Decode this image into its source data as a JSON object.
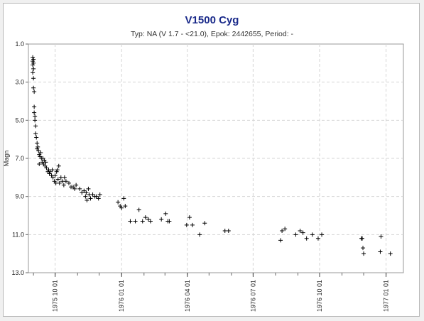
{
  "chart_data": {
    "type": "scatter",
    "title": "V1500 Cyg",
    "subtitle": "Typ: NA (V 1.7 - <21.0), Epok: 2442655, Period: -",
    "xlabel": "",
    "ylabel": "Magn",
    "x_type": "date",
    "xlim": [
      "1975-08-25",
      "1977-01-25"
    ],
    "ylim": [
      1.0,
      13.0
    ],
    "y_inverted": true,
    "grid": true,
    "legend": "none",
    "marker": "plus",
    "marker_color": "#000000",
    "title_color": "#1a2a8a",
    "y_ticks": [
      "1.0",
      "3.0",
      "5.0",
      "7.0",
      "9.0",
      "11.0",
      "13.0"
    ],
    "x_ticks": [
      "1975 10 01",
      "1976 01 01",
      "1976 04 01",
      "1976 07 01",
      "1976 10 01",
      "1977 01 01"
    ],
    "points": [
      [
        "1975-08-31",
        1.7
      ],
      [
        "1975-08-31",
        1.9
      ],
      [
        "1975-08-31",
        2.1
      ],
      [
        "1975-08-31",
        2.5
      ],
      [
        "1975-09-01",
        1.8
      ],
      [
        "1975-09-01",
        2.0
      ],
      [
        "1975-09-01",
        2.3
      ],
      [
        "1975-09-01",
        2.8
      ],
      [
        "1975-09-01",
        3.3
      ],
      [
        "1975-09-02",
        3.5
      ],
      [
        "1975-09-02",
        4.3
      ],
      [
        "1975-09-02",
        4.6
      ],
      [
        "1975-09-03",
        4.8
      ],
      [
        "1975-09-03",
        5.0
      ],
      [
        "1975-09-04",
        5.3
      ],
      [
        "1975-09-04",
        5.7
      ],
      [
        "1975-09-05",
        5.9
      ],
      [
        "1975-09-06",
        6.2
      ],
      [
        "1975-09-06",
        6.5
      ],
      [
        "1975-09-07",
        6.4
      ],
      [
        "1975-09-08",
        6.6
      ],
      [
        "1975-09-09",
        6.8
      ],
      [
        "1975-09-09",
        7.3
      ],
      [
        "1975-09-10",
        6.9
      ],
      [
        "1975-09-11",
        6.7
      ],
      [
        "1975-09-12",
        7.0
      ],
      [
        "1975-09-13",
        7.2
      ],
      [
        "1975-09-14",
        7.0
      ],
      [
        "1975-09-15",
        7.3
      ],
      [
        "1975-09-16",
        7.1
      ],
      [
        "1975-09-17",
        7.4
      ],
      [
        "1975-09-18",
        7.2
      ],
      [
        "1975-09-19",
        7.5
      ],
      [
        "1975-09-21",
        7.7
      ],
      [
        "1975-09-22",
        7.6
      ],
      [
        "1975-09-23",
        7.8
      ],
      [
        "1975-09-24",
        7.7
      ],
      [
        "1975-09-26",
        7.9
      ],
      [
        "1975-09-27",
        7.6
      ],
      [
        "1975-09-28",
        8.0
      ],
      [
        "1975-09-30",
        8.2
      ],
      [
        "1975-10-01",
        7.9
      ],
      [
        "1975-10-02",
        8.3
      ],
      [
        "1975-10-03",
        7.7
      ],
      [
        "1975-10-04",
        7.6
      ],
      [
        "1975-10-05",
        8.1
      ],
      [
        "1975-10-06",
        7.4
      ],
      [
        "1975-10-07",
        8.3
      ],
      [
        "1975-10-09",
        8.0
      ],
      [
        "1975-10-11",
        8.2
      ],
      [
        "1975-10-13",
        8.4
      ],
      [
        "1975-10-14",
        8.0
      ],
      [
        "1975-10-16",
        8.2
      ],
      [
        "1975-10-20",
        8.3
      ],
      [
        "1975-10-23",
        8.5
      ],
      [
        "1975-10-26",
        8.5
      ],
      [
        "1975-10-28",
        8.6
      ],
      [
        "1975-10-30",
        8.4
      ],
      [
        "1975-11-04",
        8.6
      ],
      [
        "1975-11-07",
        8.8
      ],
      [
        "1975-11-10",
        8.7
      ],
      [
        "1975-11-12",
        9.0
      ],
      [
        "1975-11-13",
        8.8
      ],
      [
        "1975-11-14",
        9.2
      ],
      [
        "1975-11-16",
        8.6
      ],
      [
        "1975-11-17",
        8.9
      ],
      [
        "1975-11-19",
        9.1
      ],
      [
        "1975-11-22",
        8.9
      ],
      [
        "1975-11-25",
        9.0
      ],
      [
        "1975-11-27",
        9.0
      ],
      [
        "1975-11-30",
        9.1
      ],
      [
        "1975-12-02",
        8.9
      ],
      [
        "1975-12-27",
        9.3
      ],
      [
        "1975-12-30",
        9.5
      ],
      [
        "1976-01-01",
        9.6
      ],
      [
        "1976-01-04",
        9.1
      ],
      [
        "1976-01-06",
        9.5
      ],
      [
        "1976-01-13",
        10.3
      ],
      [
        "1976-01-20",
        10.3
      ],
      [
        "1976-01-25",
        9.7
      ],
      [
        "1976-01-30",
        10.3
      ],
      [
        "1976-02-03",
        10.1
      ],
      [
        "1976-02-07",
        10.2
      ],
      [
        "1976-02-10",
        10.3
      ],
      [
        "1976-02-25",
        10.2
      ],
      [
        "1976-03-02",
        9.9
      ],
      [
        "1976-03-05",
        10.3
      ],
      [
        "1976-03-07",
        10.3
      ],
      [
        "1976-03-31",
        10.5
      ],
      [
        "1976-04-04",
        10.1
      ],
      [
        "1976-04-08",
        10.5
      ],
      [
        "1976-04-18",
        11.0
      ],
      [
        "1976-04-25",
        10.4
      ],
      [
        "1976-05-23",
        10.8
      ],
      [
        "1976-05-28",
        10.8
      ],
      [
        "1976-08-08",
        11.3
      ],
      [
        "1976-08-10",
        10.8
      ],
      [
        "1976-08-14",
        10.7
      ],
      [
        "1976-08-29",
        11.0
      ],
      [
        "1976-09-04",
        10.8
      ],
      [
        "1976-09-08",
        10.9
      ],
      [
        "1976-09-13",
        11.2
      ],
      [
        "1976-09-21",
        11.0
      ],
      [
        "1976-09-29",
        11.2
      ],
      [
        "1976-10-04",
        11.0
      ],
      [
        "1976-11-28",
        11.2
      ],
      [
        "1976-11-29",
        11.2
      ],
      [
        "1976-11-30",
        11.7
      ],
      [
        "1976-12-01",
        12.0
      ],
      [
        "1976-12-24",
        11.9
      ],
      [
        "1976-12-25",
        11.1
      ],
      [
        "1977-01-07",
        12.0
      ]
    ]
  }
}
